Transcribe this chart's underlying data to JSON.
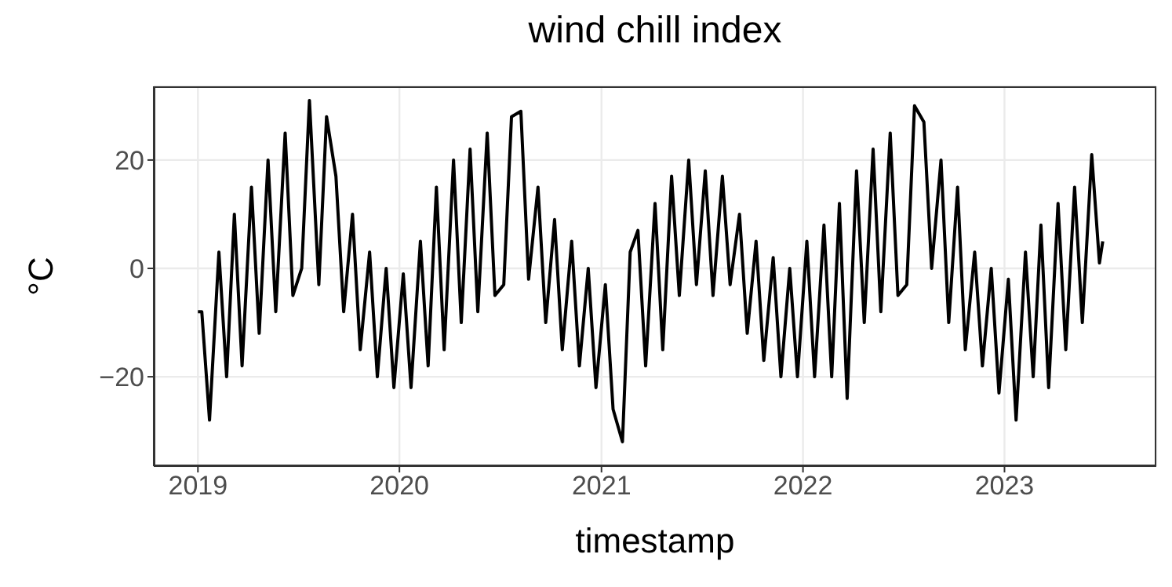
{
  "chart_data": {
    "type": "line",
    "title": "wind chill index",
    "xlabel": "timestamp",
    "ylabel": "°C",
    "x": [
      "2019-01-01",
      "2019-01-08",
      "2019-01-22",
      "2019-02-08",
      "2019-02-22",
      "2019-03-08",
      "2019-03-22",
      "2019-04-08",
      "2019-04-22",
      "2019-05-08",
      "2019-05-22",
      "2019-06-08",
      "2019-06-22",
      "2019-07-08",
      "2019-07-22",
      "2019-08-08",
      "2019-08-22",
      "2019-09-08",
      "2019-09-22",
      "2019-10-08",
      "2019-10-22",
      "2019-11-08",
      "2019-11-22",
      "2019-12-08",
      "2019-12-22",
      "2020-01-08",
      "2020-01-22",
      "2020-02-08",
      "2020-02-22",
      "2020-03-08",
      "2020-03-22",
      "2020-04-08",
      "2020-04-22",
      "2020-05-08",
      "2020-05-22",
      "2020-06-08",
      "2020-06-22",
      "2020-07-08",
      "2020-07-22",
      "2020-08-08",
      "2020-08-22",
      "2020-09-08",
      "2020-09-22",
      "2020-10-08",
      "2020-10-22",
      "2020-11-08",
      "2020-11-22",
      "2020-12-08",
      "2020-12-22",
      "2021-01-08",
      "2021-01-22",
      "2021-02-08",
      "2021-02-22",
      "2021-03-08",
      "2021-03-22",
      "2021-04-08",
      "2021-04-22",
      "2021-05-08",
      "2021-05-22",
      "2021-06-08",
      "2021-06-22",
      "2021-07-08",
      "2021-07-22",
      "2021-08-08",
      "2021-08-22",
      "2021-09-08",
      "2021-09-22",
      "2021-10-08",
      "2021-10-22",
      "2021-11-08",
      "2021-11-22",
      "2021-12-08",
      "2021-12-22",
      "2022-01-08",
      "2022-01-22",
      "2022-02-08",
      "2022-02-22",
      "2022-03-08",
      "2022-03-22",
      "2022-04-08",
      "2022-04-22",
      "2022-05-08",
      "2022-05-22",
      "2022-06-08",
      "2022-06-22",
      "2022-07-08",
      "2022-07-22",
      "2022-08-08",
      "2022-08-22",
      "2022-09-08",
      "2022-09-22",
      "2022-10-08",
      "2022-10-22",
      "2022-11-08",
      "2022-11-22",
      "2022-12-08",
      "2022-12-22",
      "2023-01-08",
      "2023-01-22",
      "2023-02-08",
      "2023-02-22",
      "2023-03-08",
      "2023-03-22",
      "2023-04-08",
      "2023-04-22",
      "2023-05-08",
      "2023-05-22",
      "2023-06-08",
      "2023-06-22",
      "2023-06-28"
    ],
    "series": [
      {
        "color": "#000000",
        "values": [
          -8,
          -8,
          -28,
          3,
          -20,
          10,
          -18,
          15,
          -12,
          20,
          -8,
          25,
          -5,
          0,
          31,
          -3,
          28,
          17,
          -8,
          10,
          -15,
          3,
          -20,
          0,
          -22,
          -1,
          -22,
          5,
          -18,
          15,
          -15,
          20,
          -10,
          22,
          -8,
          25,
          -5,
          -3,
          28,
          29,
          -2,
          15,
          -10,
          9,
          -15,
          5,
          -18,
          0,
          -22,
          -3,
          -26,
          -32,
          3,
          7,
          -18,
          12,
          -15,
          17,
          -5,
          20,
          -3,
          18,
          -5,
          17,
          -3,
          10,
          -12,
          5,
          -17,
          2,
          -20,
          0,
          -20,
          5,
          -20,
          8,
          -20,
          12,
          -24,
          18,
          -10,
          22,
          -8,
          25,
          -5,
          -3,
          30,
          27,
          0,
          20,
          -10,
          15,
          -15,
          3,
          -18,
          0,
          -23,
          -2,
          -28,
          3,
          -20,
          8,
          -22,
          12,
          -15,
          15,
          -10,
          21,
          1,
          5
        ]
      }
    ],
    "xlim": [
      "2018-10-13",
      "2023-10-03"
    ],
    "xticks": [
      "2019",
      "2020",
      "2021",
      "2022",
      "2023"
    ],
    "ylim": [
      -36.5,
      33.6
    ],
    "yticks": [
      -20,
      0,
      20
    ],
    "grid": true,
    "line_style": "solid",
    "marker": "none",
    "legend": false
  }
}
